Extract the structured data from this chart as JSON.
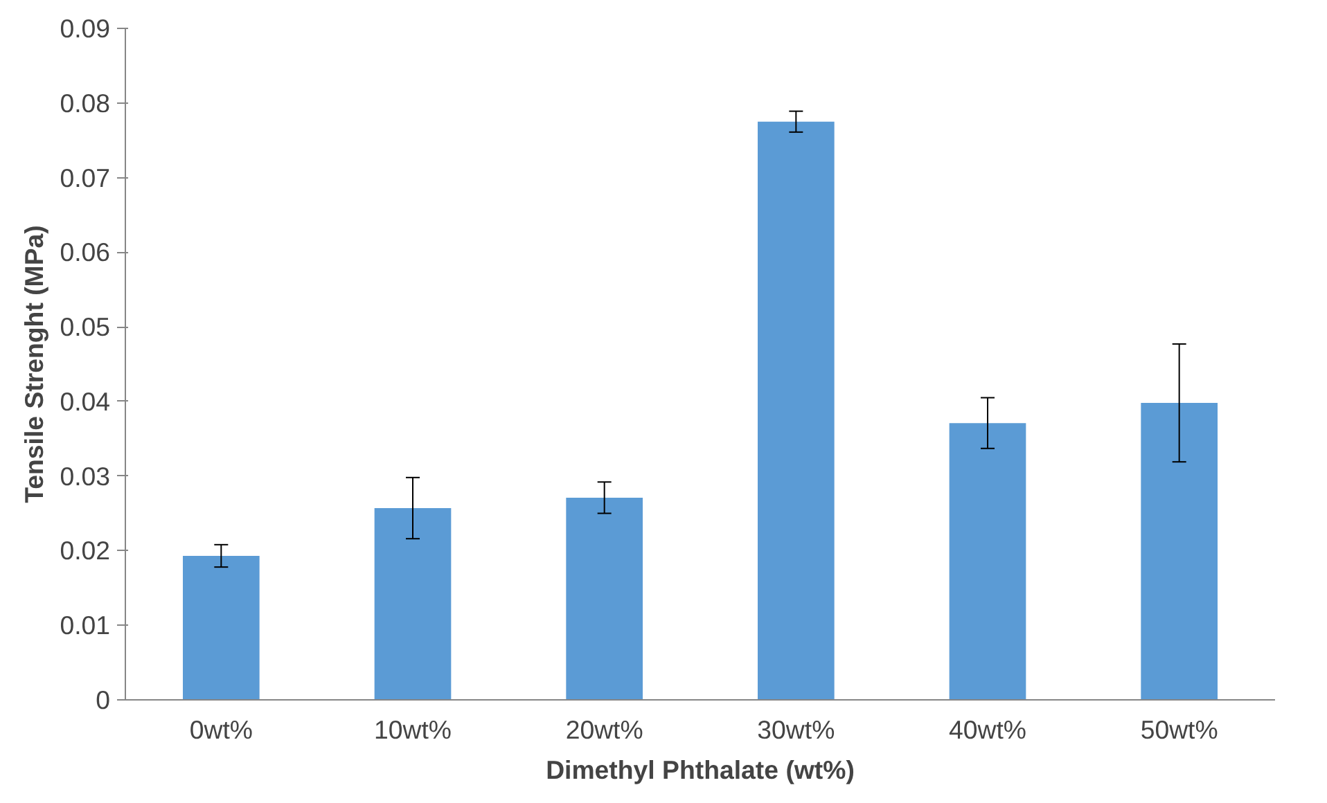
{
  "chart_data": {
    "type": "bar",
    "xlabel": "Dimethyl Phthalate (wt%)",
    "ylabel": "Tensile Strenght (MPa)",
    "categories": [
      "0wt%",
      "10wt%",
      "20wt%",
      "30wt%",
      "40wt%",
      "50wt%"
    ],
    "values": [
      0.0193,
      0.0257,
      0.0271,
      0.0775,
      0.0371,
      0.0398
    ],
    "errors": [
      0.0015,
      0.0041,
      0.0021,
      0.0014,
      0.0034,
      0.0079
    ],
    "color": "#5b9bd5",
    "ylim": [
      0,
      0.09
    ],
    "yticks": [
      0,
      0.01,
      0.02,
      0.03,
      0.04,
      0.05,
      0.06,
      0.07,
      0.08,
      0.09
    ],
    "grid": false
  }
}
